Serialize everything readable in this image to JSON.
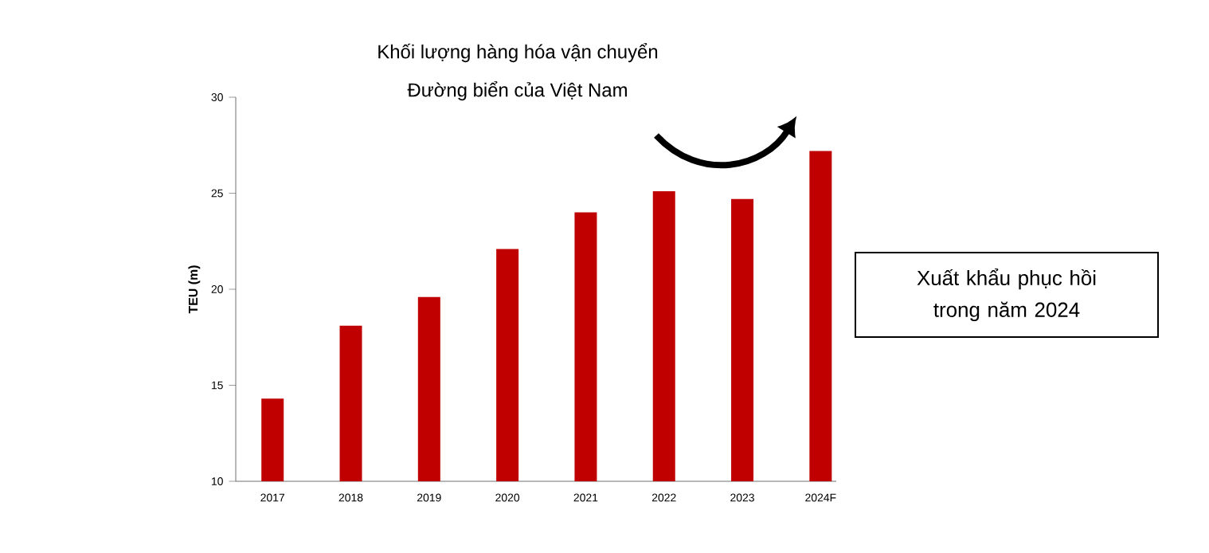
{
  "chart_data": {
    "type": "bar",
    "title": "Khối lượng hàng hóa vận chuyển",
    "subtitle": "Đường biển của Việt Nam",
    "ylabel": "TEU (m)",
    "categories": [
      "2017",
      "2018",
      "2019",
      "2020",
      "2021",
      "2022",
      "2023",
      "2024F"
    ],
    "values": [
      14.3,
      18.1,
      19.6,
      22.1,
      24.0,
      25.1,
      24.7,
      27.2
    ],
    "color": "#c00000",
    "ylim": [
      10,
      30
    ],
    "yticks": [
      10,
      15,
      20,
      25,
      30
    ],
    "annotations": [
      "Xuất khẩu phục hồi trong năm 2024"
    ]
  }
}
